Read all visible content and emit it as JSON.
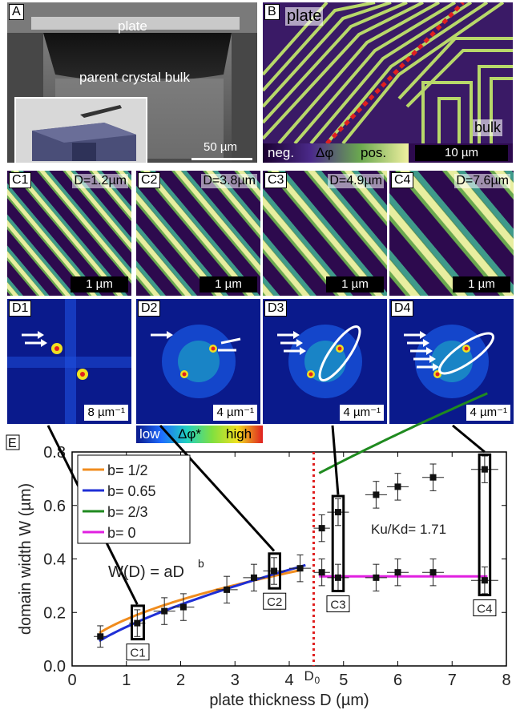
{
  "panelA": {
    "tag": "A",
    "plate": "plate",
    "bulk": "parent crystal bulk",
    "scale": "50 µm"
  },
  "panelB": {
    "tag": "B",
    "plate": "plate",
    "bulk": "bulk",
    "neg": "neg.",
    "dphi": "Δφ",
    "pos": "pos.",
    "scale": "10 µm"
  },
  "panelsC": [
    {
      "tag": "C1",
      "label": "D=1.2µm",
      "scale": "1 µm"
    },
    {
      "tag": "C2",
      "label": "D=3.8µm",
      "scale": "1 µm"
    },
    {
      "tag": "C3",
      "label": "D=4.9µm",
      "scale": "1 µm"
    },
    {
      "tag": "C4",
      "label": "D=7.6µm",
      "scale": "1 µm"
    }
  ],
  "panelsD": [
    {
      "tag": "D1",
      "scale": "8 µm⁻¹"
    },
    {
      "tag": "D2",
      "scale": "4 µm⁻¹"
    },
    {
      "tag": "D3",
      "scale": "4 µm⁻¹"
    },
    {
      "tag": "D4",
      "scale": "4 µm⁻¹"
    }
  ],
  "colorbarD": {
    "low": "low",
    "dphi": "Δφ*",
    "high": "high"
  },
  "colors": {
    "purple": "#2d0a4e",
    "green": "#6aa84f",
    "yellow": "#f0f0a0",
    "fft_bg": "#0a1a8c",
    "red_dash": "#e02020"
  },
  "chart_data": {
    "type": "scatter",
    "tag": "E",
    "xlabel": "plate thickness D (µm)",
    "ylabel": "domain width W (µm)",
    "xlim": [
      0,
      8
    ],
    "ylim": [
      0,
      0.8
    ],
    "xticks": [
      0,
      1,
      2,
      3,
      4,
      5,
      6,
      7,
      8
    ],
    "yticks": [
      0.0,
      0.2,
      0.4,
      0.6,
      0.8
    ],
    "d0_label": "D",
    "d0_sub": "0",
    "d0_value": 4.45,
    "formula": "W(D) = aD",
    "formula_sup": "b",
    "ratio_label": "K",
    "ratio_text": "Ku/Kd= 1.71",
    "legend": [
      {
        "name": "b= 1/2",
        "color": "#f08c1e"
      },
      {
        "name": "b= 0.65",
        "color": "#1f2fd6"
      },
      {
        "name": "b= 2/3",
        "color": "#1f8a1f"
      },
      {
        "name": "b= 0",
        "color": "#e020e0"
      }
    ],
    "points_left": [
      {
        "x": 0.52,
        "y": 0.11,
        "xerr": 0.12,
        "yerr": 0.04
      },
      {
        "x": 1.2,
        "y": 0.16,
        "xerr": 0.15,
        "yerr": 0.05
      },
      {
        "x": 1.7,
        "y": 0.205,
        "xerr": 0.2,
        "yerr": 0.05
      },
      {
        "x": 2.05,
        "y": 0.22,
        "xerr": 0.2,
        "yerr": 0.05
      },
      {
        "x": 2.85,
        "y": 0.285,
        "xerr": 0.2,
        "yerr": 0.05
      },
      {
        "x": 3.35,
        "y": 0.33,
        "xerr": 0.2,
        "yerr": 0.05
      },
      {
        "x": 3.72,
        "y": 0.355,
        "xerr": 0.2,
        "yerr": 0.05
      },
      {
        "x": 4.2,
        "y": 0.365,
        "xerr": 0.2,
        "yerr": 0.05
      }
    ],
    "points_upper": [
      {
        "x": 4.6,
        "y": 0.515,
        "xerr": 0.15,
        "yerr": 0.05
      },
      {
        "x": 4.9,
        "y": 0.575,
        "xerr": 0.2,
        "yerr": 0.05
      },
      {
        "x": 5.6,
        "y": 0.64,
        "xerr": 0.2,
        "yerr": 0.05
      },
      {
        "x": 6.0,
        "y": 0.67,
        "xerr": 0.2,
        "yerr": 0.05
      },
      {
        "x": 6.65,
        "y": 0.705,
        "xerr": 0.2,
        "yerr": 0.05
      },
      {
        "x": 7.6,
        "y": 0.735,
        "xerr": 0.25,
        "yerr": 0.05
      }
    ],
    "points_lower": [
      {
        "x": 4.6,
        "y": 0.35,
        "xerr": 0.15,
        "yerr": 0.05
      },
      {
        "x": 4.9,
        "y": 0.33,
        "xerr": 0.2,
        "yerr": 0.05
      },
      {
        "x": 5.6,
        "y": 0.33,
        "xerr": 0.2,
        "yerr": 0.05
      },
      {
        "x": 6.0,
        "y": 0.35,
        "xerr": 0.2,
        "yerr": 0.05
      },
      {
        "x": 6.65,
        "y": 0.35,
        "xerr": 0.2,
        "yerr": 0.05
      },
      {
        "x": 7.6,
        "y": 0.32,
        "xerr": 0.25,
        "yerr": 0.05
      }
    ],
    "fits": [
      {
        "name": "b= 1/2",
        "a": 0.1745,
        "b": 0.5,
        "x0": 0.5,
        "x1": 4.2,
        "color": "#f08c1e"
      },
      {
        "name": "b= 0.65",
        "a": 0.146,
        "b": 0.65,
        "x0": 0.5,
        "x1": 4.3,
        "color": "#1f2fd6"
      },
      {
        "name": "b= 2/3",
        "a": 0.2625,
        "b": 0.6667,
        "x0": 4.55,
        "x1": 7.65,
        "color": "#1f8a1f"
      },
      {
        "name": "b= 0",
        "a": 0.335,
        "b": 0,
        "x0": 4.55,
        "x1": 7.65,
        "color": "#e020e0"
      }
    ],
    "boxes": [
      {
        "label": "C1",
        "x0": 1.1,
        "x1": 1.32,
        "y0": 0.1,
        "y1": 0.225
      },
      {
        "label": "C2",
        "x0": 3.63,
        "x1": 3.83,
        "y0": 0.29,
        "y1": 0.42
      },
      {
        "label": "C3",
        "x0": 4.8,
        "x1": 5.0,
        "y0": 0.28,
        "y1": 0.635
      },
      {
        "label": "C4",
        "x0": 7.5,
        "x1": 7.7,
        "y0": 0.265,
        "y1": 0.79
      }
    ]
  }
}
